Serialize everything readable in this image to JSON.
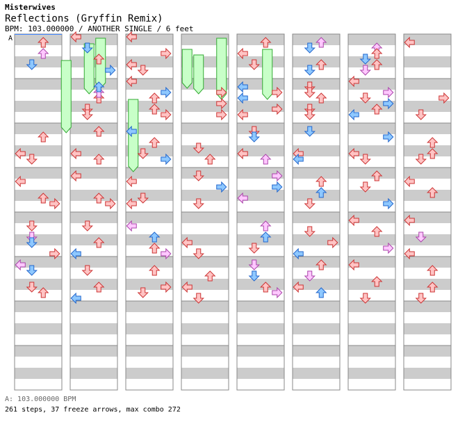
{
  "header": {
    "artist": "Misterwives",
    "title": "Reflections (Gryffin Remix)",
    "subtitle": "BPM: 103.000000 / ANOTHER SINGLE / 6 feet",
    "marker": "A"
  },
  "footer": {
    "bpm_line": "A: 103.000000 BPM",
    "stats_line": "261 steps, 37 freeze arrows, max combo 272"
  },
  "colors": {
    "background": "#ffffff",
    "band": "#cccccc",
    "border": "#888888",
    "red_fill": "#ffc4c4",
    "red_stroke": "#cc3333",
    "blue_fill": "#8ec8ff",
    "blue_stroke": "#2266cc",
    "pink_fill": "#ffc8ff",
    "pink_stroke": "#aa44aa",
    "freeze_fill": "#c8ffc8",
    "freeze_stroke": "#33aa33"
  },
  "chart_data": {
    "type": "step-chart",
    "columns": 8,
    "measures_per_column": 8,
    "lanes": [
      "left",
      "down",
      "up",
      "right"
    ],
    "notes": [
      [
        0,
        0,
        1,
        "r",
        "up"
      ],
      [
        0,
        0,
        5,
        "b",
        "down"
      ],
      [
        0,
        0,
        3,
        "p",
        "up"
      ],
      [
        1,
        0,
        4,
        "r",
        "up"
      ],
      [
        1,
        0,
        2,
        "b",
        "down"
      ],
      [
        1,
        0,
        0,
        "r",
        "left"
      ],
      [
        1,
        0,
        6,
        "b",
        "right"
      ],
      [
        1,
        1,
        3,
        "r",
        "up"
      ],
      [
        1,
        1,
        2,
        "p",
        "up"
      ],
      [
        1,
        1,
        1,
        "b",
        "up"
      ],
      [
        1,
        1,
        5,
        "r",
        "down"
      ],
      [
        1,
        1,
        6,
        "r",
        "down"
      ],
      [
        2,
        0,
        3,
        "r",
        "right"
      ],
      [
        2,
        0,
        5,
        "r",
        "left"
      ],
      [
        2,
        0,
        0,
        "r",
        "left"
      ],
      [
        2,
        0,
        6,
        "r",
        "down"
      ],
      [
        2,
        1,
        0,
        "r",
        "left"
      ],
      [
        2,
        1,
        3,
        "r",
        "up"
      ],
      [
        2,
        1,
        2,
        "b",
        "right"
      ],
      [
        2,
        1,
        5,
        "r",
        "up"
      ],
      [
        2,
        1,
        6,
        "r",
        "right"
      ],
      [
        3,
        1,
        2,
        "r",
        "right"
      ],
      [
        3,
        1,
        6,
        "r",
        "right"
      ],
      [
        3,
        1,
        4,
        "r",
        "right"
      ],
      [
        4,
        0,
        1,
        "r",
        "up"
      ],
      [
        4,
        0,
        3,
        "r",
        "left"
      ],
      [
        4,
        0,
        5,
        "r",
        "down"
      ],
      [
        4,
        1,
        1,
        "b",
        "left"
      ],
      [
        4,
        1,
        3,
        "b",
        "left"
      ],
      [
        4,
        1,
        2,
        "r",
        "right"
      ],
      [
        4,
        1,
        5,
        "r",
        "right"
      ],
      [
        4,
        1,
        6,
        "r",
        "left"
      ],
      [
        5,
        0,
        1,
        "p",
        "up"
      ],
      [
        5,
        0,
        2,
        "b",
        "down"
      ],
      [
        5,
        0,
        5,
        "r",
        "up"
      ],
      [
        5,
        0,
        6,
        "b",
        "down"
      ],
      [
        5,
        1,
        1,
        "r",
        "down"
      ],
      [
        5,
        1,
        2,
        "r",
        "down"
      ],
      [
        5,
        1,
        5,
        "r",
        "down"
      ],
      [
        5,
        1,
        6,
        "r",
        "down"
      ],
      [
        5,
        1,
        3,
        "r",
        "up"
      ],
      [
        6,
        0,
        2,
        "p",
        "up"
      ],
      [
        6,
        0,
        4,
        "b",
        "down"
      ],
      [
        6,
        0,
        3,
        "r",
        "up"
      ],
      [
        6,
        0,
        6,
        "p",
        "down"
      ],
      [
        6,
        0,
        5,
        "r",
        "up"
      ],
      [
        6,
        1,
        0,
        "r",
        "left"
      ],
      [
        6,
        1,
        3,
        "r",
        "down"
      ],
      [
        6,
        1,
        4,
        "b",
        "right"
      ],
      [
        6,
        1,
        2,
        "p",
        "right"
      ],
      [
        6,
        1,
        5,
        "r",
        "up"
      ],
      [
        6,
        1,
        6,
        "b",
        "left"
      ],
      [
        7,
        0,
        1,
        "r",
        "left"
      ],
      [
        7,
        1,
        3,
        "r",
        "right"
      ],
      [
        7,
        1,
        6,
        "r",
        "down"
      ],
      [
        0,
        2,
        2,
        "r",
        "up"
      ],
      [
        0,
        2,
        5,
        "r",
        "left"
      ],
      [
        0,
        2,
        6,
        "r",
        "down"
      ],
      [
        1,
        2,
        1,
        "r",
        "up"
      ],
      [
        1,
        2,
        5,
        "r",
        "left"
      ],
      [
        1,
        2,
        6,
        "r",
        "up"
      ],
      [
        2,
        2,
        1,
        "b",
        "left"
      ],
      [
        2,
        2,
        3,
        "r",
        "up"
      ],
      [
        2,
        2,
        5,
        "r",
        "down"
      ],
      [
        2,
        2,
        6,
        "b",
        "right"
      ],
      [
        3,
        2,
        4,
        "r",
        "down"
      ],
      [
        3,
        2,
        6,
        "r",
        "up"
      ],
      [
        4,
        2,
        1,
        "r",
        "down"
      ],
      [
        4,
        2,
        2,
        "b",
        "down"
      ],
      [
        4,
        2,
        5,
        "r",
        "left"
      ],
      [
        4,
        2,
        6,
        "p",
        "up"
      ],
      [
        5,
        2,
        1,
        "b",
        "down"
      ],
      [
        5,
        2,
        5,
        "r",
        "left"
      ],
      [
        5,
        2,
        6,
        "b",
        "left"
      ],
      [
        6,
        2,
        2,
        "b",
        "right"
      ],
      [
        6,
        2,
        5,
        "r",
        "left"
      ],
      [
        6,
        2,
        6,
        "r",
        "down"
      ],
      [
        7,
        2,
        3,
        "r",
        "up"
      ],
      [
        7,
        2,
        5,
        "r",
        "up"
      ],
      [
        7,
        2,
        6,
        "r",
        "down"
      ],
      [
        0,
        3,
        2,
        "r",
        "left"
      ],
      [
        0,
        3,
        5,
        "r",
        "up"
      ],
      [
        0,
        3,
        6,
        "r",
        "right"
      ],
      [
        1,
        3,
        1,
        "r",
        "left"
      ],
      [
        1,
        3,
        5,
        "r",
        "up"
      ],
      [
        1,
        3,
        6,
        "r",
        "right"
      ],
      [
        2,
        3,
        2,
        "r",
        "left"
      ],
      [
        2,
        3,
        5,
        "r",
        "down"
      ],
      [
        2,
        3,
        6,
        "r",
        "left"
      ],
      [
        3,
        3,
        1,
        "r",
        "down"
      ],
      [
        3,
        3,
        3,
        "b",
        "right"
      ],
      [
        3,
        3,
        6,
        "r",
        "down"
      ],
      [
        4,
        3,
        1,
        "p",
        "right"
      ],
      [
        4,
        3,
        3,
        "b",
        "right"
      ],
      [
        4,
        3,
        5,
        "p",
        "left"
      ],
      [
        5,
        3,
        4,
        "b",
        "up"
      ],
      [
        5,
        3,
        6,
        "r",
        "down"
      ],
      [
        5,
        3,
        2,
        "r",
        "up"
      ],
      [
        6,
        3,
        1,
        "r",
        "up"
      ],
      [
        6,
        3,
        3,
        "r",
        "down"
      ],
      [
        6,
        3,
        6,
        "b",
        "right"
      ],
      [
        7,
        3,
        2,
        "r",
        "left"
      ],
      [
        7,
        3,
        4,
        "r",
        "up"
      ],
      [
        0,
        4,
        2,
        "r",
        "down"
      ],
      [
        0,
        4,
        4,
        "p",
        "down"
      ],
      [
        0,
        4,
        5,
        "b",
        "down"
      ],
      [
        0,
        4,
        7,
        "r",
        "right"
      ],
      [
        1,
        4,
        2,
        "r",
        "down"
      ],
      [
        1,
        4,
        5,
        "r",
        "up"
      ],
      [
        1,
        4,
        7,
        "b",
        "left"
      ],
      [
        2,
        4,
        2,
        "p",
        "left"
      ],
      [
        2,
        4,
        4,
        "b",
        "up"
      ],
      [
        2,
        4,
        6,
        "r",
        "up"
      ],
      [
        2,
        4,
        7,
        "p",
        "right"
      ],
      [
        3,
        4,
        5,
        "r",
        "left"
      ],
      [
        3,
        4,
        7,
        "r",
        "down"
      ],
      [
        4,
        4,
        2,
        "p",
        "up"
      ],
      [
        4,
        4,
        4,
        "b",
        "up"
      ],
      [
        4,
        4,
        6,
        "r",
        "down"
      ],
      [
        5,
        4,
        3,
        "r",
        "down"
      ],
      [
        5,
        4,
        5,
        "r",
        "right"
      ],
      [
        5,
        4,
        7,
        "b",
        "left"
      ],
      [
        6,
        4,
        1,
        "r",
        "left"
      ],
      [
        6,
        4,
        3,
        "r",
        "up"
      ],
      [
        6,
        4,
        6,
        "p",
        "right"
      ],
      [
        7,
        4,
        1,
        "r",
        "left"
      ],
      [
        7,
        4,
        4,
        "p",
        "down"
      ],
      [
        7,
        4,
        7,
        "r",
        "left"
      ],
      [
        0,
        5,
        1,
        "p",
        "left"
      ],
      [
        0,
        5,
        2,
        "b",
        "down"
      ],
      [
        0,
        5,
        5,
        "r",
        "down"
      ],
      [
        0,
        5,
        6,
        "r",
        "up"
      ],
      [
        1,
        5,
        2,
        "r",
        "down"
      ],
      [
        1,
        5,
        5,
        "r",
        "up"
      ],
      [
        1,
        5,
        7,
        "b",
        "left"
      ],
      [
        2,
        5,
        2,
        "r",
        "up"
      ],
      [
        2,
        5,
        5,
        "r",
        "right"
      ],
      [
        2,
        5,
        6,
        "r",
        "down"
      ],
      [
        3,
        5,
        3,
        "r",
        "up"
      ],
      [
        3,
        5,
        5,
        "r",
        "left"
      ],
      [
        3,
        5,
        7,
        "r",
        "down"
      ],
      [
        4,
        5,
        1,
        "p",
        "down"
      ],
      [
        4,
        5,
        3,
        "b",
        "down"
      ],
      [
        4,
        5,
        5,
        "r",
        "up"
      ],
      [
        4,
        5,
        6,
        "p",
        "right"
      ],
      [
        5,
        5,
        1,
        "r",
        "up"
      ],
      [
        5,
        5,
        3,
        "p",
        "down"
      ],
      [
        5,
        5,
        5,
        "r",
        "left"
      ],
      [
        5,
        5,
        6,
        "b",
        "up"
      ],
      [
        6,
        5,
        1,
        "r",
        "left"
      ],
      [
        6,
        5,
        4,
        "r",
        "up"
      ],
      [
        6,
        5,
        7,
        "r",
        "down"
      ],
      [
        7,
        5,
        2,
        "r",
        "up"
      ],
      [
        7,
        5,
        5,
        "r",
        "up"
      ],
      [
        7,
        5,
        7,
        "r",
        "down"
      ]
    ],
    "freezes": [
      [
        0,
        3,
        0,
        2,
        3
      ],
      [
        1,
        3,
        0,
        3,
        3
      ],
      [
        3,
        3,
        0,
        0,
        5
      ],
      [
        4,
        0,
        0,
        4,
        6
      ],
      [
        5,
        1,
        1,
        3,
        6
      ],
      [
        6,
        0,
        0,
        1,
        4
      ],
      [
        7,
        3,
        0,
        2,
        4
      ],
      [
        7,
        0,
        0,
        0,
        4
      ]
    ]
  }
}
